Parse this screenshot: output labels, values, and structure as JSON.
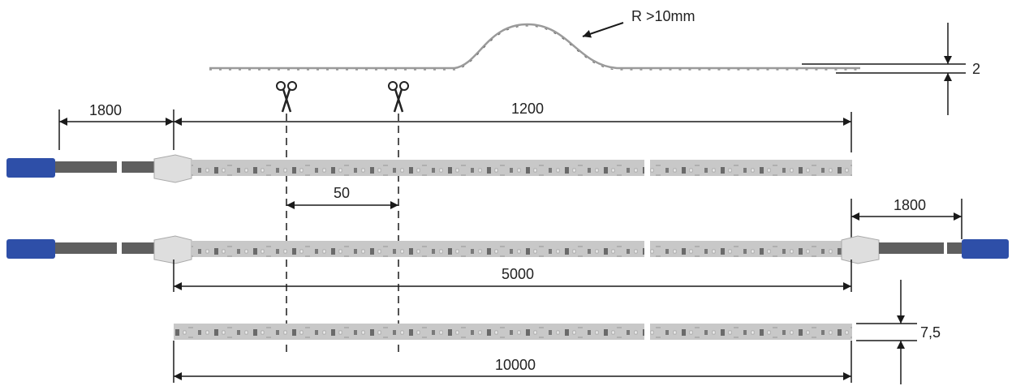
{
  "labels": {
    "bend_radius": "R >10mm",
    "strip_thickness": "2",
    "cable_length_top": "1800",
    "strip_1200": "1200",
    "cut_interval": "50",
    "cable_length_right": "1800",
    "strip_5000": "5000",
    "strip_width": "7,5",
    "strip_10000": "10000"
  },
  "colors": {
    "connector_blue": "#2e4fa8",
    "cable_gray": "#5f5f5f",
    "strip_gray": "#c8c8c8",
    "endcap_gray": "#dedede",
    "line": "#1a1a1a"
  },
  "icons": [
    "scissors-icon",
    "scissors-icon"
  ]
}
